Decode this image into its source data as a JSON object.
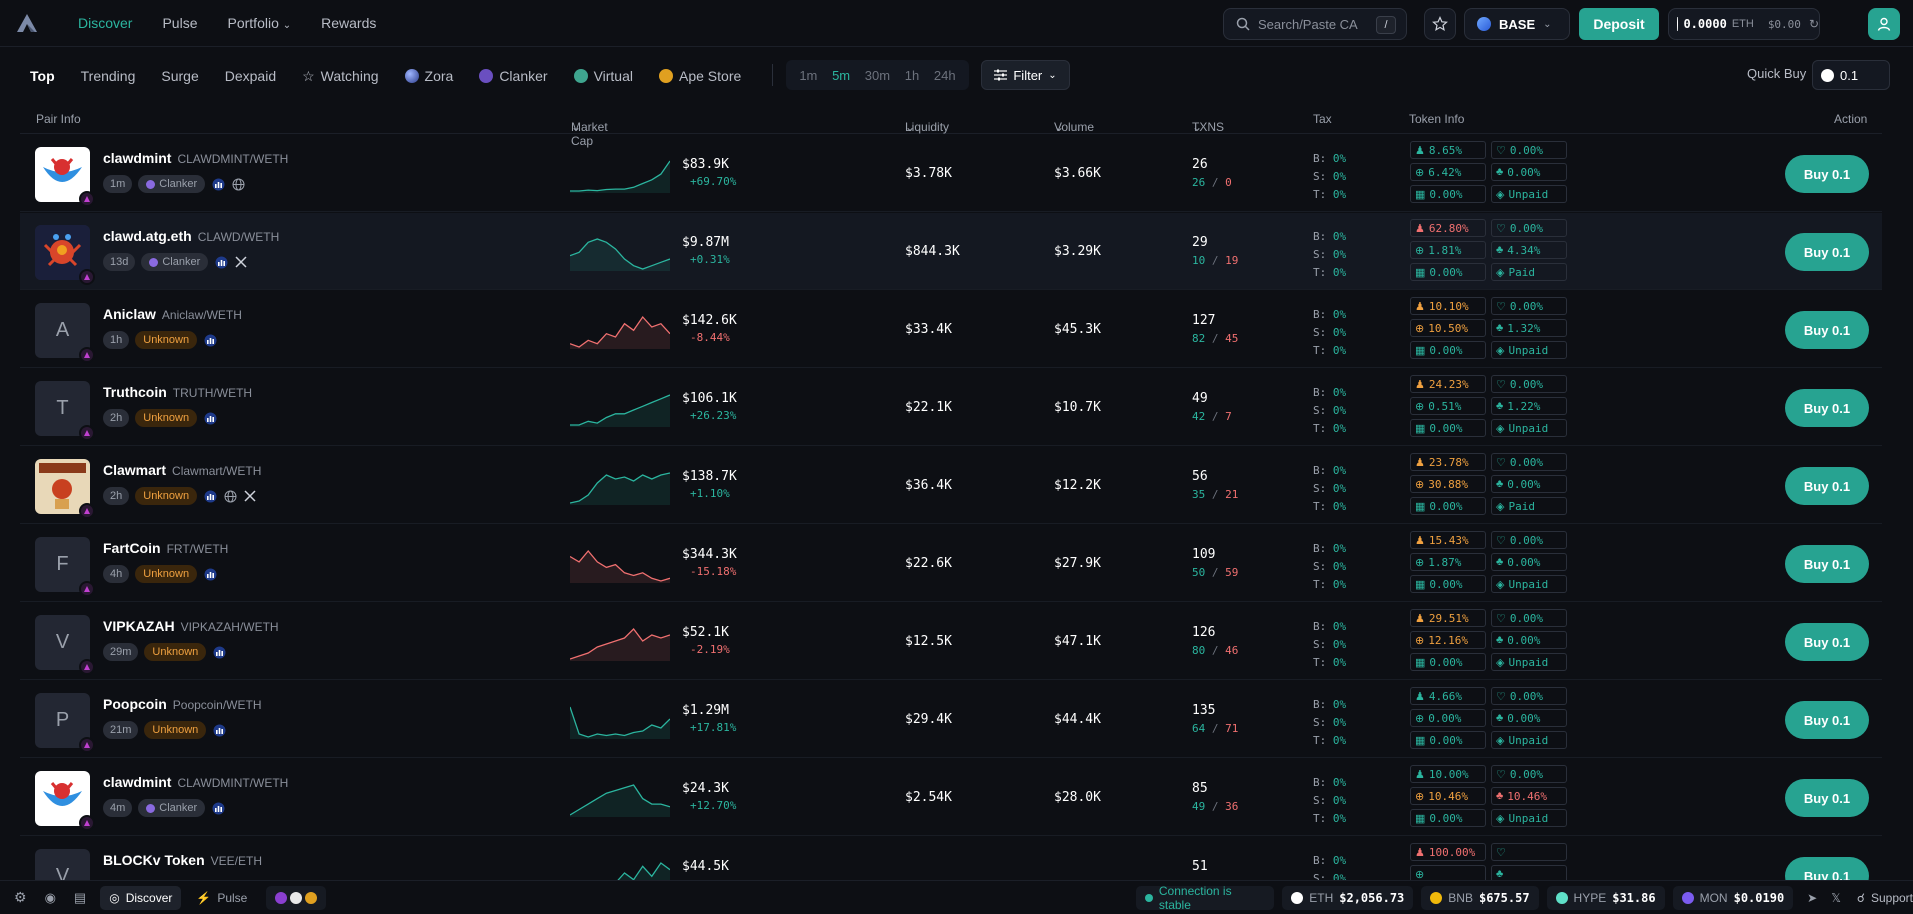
{
  "nav": {
    "items": [
      "Discover",
      "Pulse",
      "Portfolio",
      "Rewards"
    ],
    "active": 0
  },
  "search": {
    "placeholder": "Search/Paste CA",
    "shortcut": "/"
  },
  "network": {
    "label": "BASE"
  },
  "deposit": {
    "label": "Deposit"
  },
  "wallet": {
    "balance": "0.0000",
    "unit": "ETH",
    "usd": "$0.00"
  },
  "tabs": {
    "items": [
      "Top",
      "Trending",
      "Surge",
      "Dexpaid",
      "Watching",
      "Zora",
      "Clanker",
      "Virtual",
      "Ape Store"
    ],
    "active": 0
  },
  "time": {
    "items": [
      "1m",
      "5m",
      "30m",
      "1h",
      "24h"
    ],
    "active": 1
  },
  "filter": {
    "label": "Filter"
  },
  "quickbuy": {
    "label": "Quick Buy",
    "value": "0.1"
  },
  "table": {
    "headers": {
      "pair": "Pair Info",
      "mcap": "Market Cap",
      "liq": "Liquidity",
      "vol": "Volume",
      "txns": "TXNS",
      "tax": "Tax",
      "info": "Token Info",
      "action": "Action"
    }
  },
  "tax_labels": {
    "b": "B:",
    "s": "S:",
    "t": "T:"
  },
  "rows": [
    {
      "name": "clawdmint",
      "pair": "CLAWDMINT/WETH",
      "age": "1m",
      "launch": "Clanker",
      "letter": "",
      "img": "clawd",
      "mcap": "$83.9K",
      "chg": "+69.70%",
      "dir": "pos",
      "liq": "$3.78K",
      "vol": "$3.66K",
      "txns": "26",
      "buys": "26",
      "sells": "0",
      "tax": [
        "0%",
        "0%",
        "0%"
      ],
      "info": [
        [
          "8.65%",
          "g"
        ],
        [
          "0.00%",
          "g"
        ],
        [
          "6.42%",
          "g"
        ],
        [
          "0.00%",
          "g"
        ],
        [
          "0.00%",
          "g"
        ],
        [
          "Unpaid",
          "g"
        ]
      ],
      "socials": [
        "chart",
        "globe"
      ],
      "spark": [
        2,
        2,
        2.5,
        2.2,
        2.8,
        3,
        3,
        4,
        6,
        8,
        11,
        18
      ],
      "highlight": false
    },
    {
      "name": "clawd.atg.eth",
      "pair": "CLAWD/WETH",
      "age": "13d",
      "launch": "Clanker",
      "letter": "",
      "img": "robot",
      "mcap": "$9.87M",
      "chg": "+0.31%",
      "dir": "pos",
      "liq": "$844.3K",
      "vol": "$3.29K",
      "txns": "29",
      "buys": "10",
      "sells": "19",
      "tax": [
        "0%",
        "0%",
        "0%"
      ],
      "info": [
        [
          "62.80%",
          "r"
        ],
        [
          "0.00%",
          "g"
        ],
        [
          "1.81%",
          "g"
        ],
        [
          "4.34%",
          "g"
        ],
        [
          "0.00%",
          "g"
        ],
        [
          "Paid",
          "g"
        ]
      ],
      "socials": [
        "chart",
        "x"
      ],
      "spark": [
        8,
        9,
        12,
        13,
        12,
        10,
        7,
        5,
        4,
        5,
        6,
        7
      ],
      "highlight": true
    },
    {
      "name": "Aniclaw",
      "pair": "Aniclaw/WETH",
      "age": "1h",
      "launch": "Unknown",
      "letter": "A",
      "img": "",
      "mcap": "$142.6K",
      "chg": "-8.44%",
      "dir": "neg",
      "liq": "$33.4K",
      "vol": "$45.3K",
      "txns": "127",
      "buys": "82",
      "sells": "45",
      "tax": [
        "0%",
        "0%",
        "0%"
      ],
      "info": [
        [
          "10.10%",
          "o"
        ],
        [
          "0.00%",
          "g"
        ],
        [
          "10.50%",
          "o"
        ],
        [
          "1.32%",
          "g"
        ],
        [
          "0.00%",
          "g"
        ],
        [
          "Unpaid",
          "g"
        ]
      ],
      "socials": [
        "chart"
      ],
      "spark": [
        6,
        5,
        7,
        6,
        9,
        8,
        12,
        10,
        14,
        11,
        12,
        9
      ],
      "highlight": false
    },
    {
      "name": "Truthcoin",
      "pair": "TRUTH/WETH",
      "age": "2h",
      "launch": "Unknown",
      "letter": "T",
      "img": "",
      "mcap": "$106.1K",
      "chg": "+26.23%",
      "dir": "pos",
      "liq": "$22.1K",
      "vol": "$10.7K",
      "txns": "49",
      "buys": "42",
      "sells": "7",
      "tax": [
        "0%",
        "0%",
        "0%"
      ],
      "info": [
        [
          "24.23%",
          "o"
        ],
        [
          "0.00%",
          "g"
        ],
        [
          "0.51%",
          "g"
        ],
        [
          "1.22%",
          "g"
        ],
        [
          "0.00%",
          "g"
        ],
        [
          "Unpaid",
          "g"
        ]
      ],
      "socials": [
        "chart"
      ],
      "spark": [
        3,
        3,
        4,
        3.5,
        5,
        6,
        6,
        7,
        8,
        9,
        10,
        11
      ],
      "highlight": false
    },
    {
      "name": "Clawmart",
      "pair": "Clawmart/WETH",
      "age": "2h",
      "launch": "Unknown",
      "letter": "",
      "img": "clawmart",
      "mcap": "$138.7K",
      "chg": "+1.10%",
      "dir": "pos",
      "liq": "$36.4K",
      "vol": "$12.2K",
      "txns": "56",
      "buys": "35",
      "sells": "21",
      "tax": [
        "0%",
        "0%",
        "0%"
      ],
      "info": [
        [
          "23.78%",
          "o"
        ],
        [
          "0.00%",
          "g"
        ],
        [
          "30.88%",
          "o"
        ],
        [
          "0.00%",
          "g"
        ],
        [
          "0.00%",
          "g"
        ],
        [
          "Paid",
          "g"
        ]
      ],
      "socials": [
        "chart",
        "globe",
        "x"
      ],
      "spark": [
        2,
        2.5,
        4,
        7,
        9,
        8,
        8.5,
        7.5,
        9,
        8,
        9,
        9.5
      ],
      "highlight": false
    },
    {
      "name": "FartCoin",
      "pair": "FRT/WETH",
      "age": "4h",
      "launch": "Unknown",
      "letter": "F",
      "img": "",
      "mcap": "$344.3K",
      "chg": "-15.18%",
      "dir": "neg",
      "liq": "$22.6K",
      "vol": "$27.9K",
      "txns": "109",
      "buys": "50",
      "sells": "59",
      "tax": [
        "0%",
        "0%",
        "0%"
      ],
      "info": [
        [
          "15.43%",
          "o"
        ],
        [
          "0.00%",
          "g"
        ],
        [
          "1.87%",
          "g"
        ],
        [
          "0.00%",
          "g"
        ],
        [
          "0.00%",
          "g"
        ],
        [
          "Unpaid",
          "g"
        ]
      ],
      "socials": [
        "chart"
      ],
      "spark": [
        10,
        9,
        11,
        9,
        8,
        8.5,
        7,
        6.5,
        7,
        6,
        5.5,
        6
      ],
      "highlight": false
    },
    {
      "name": "VIPKAZAH",
      "pair": "VIPKAZAH/WETH",
      "age": "29m",
      "launch": "Unknown",
      "letter": "V",
      "img": "",
      "mcap": "$52.1K",
      "chg": "-2.19%",
      "dir": "neg",
      "liq": "$12.5K",
      "vol": "$47.1K",
      "txns": "126",
      "buys": "80",
      "sells": "46",
      "tax": [
        "0%",
        "0%",
        "0%"
      ],
      "info": [
        [
          "29.51%",
          "o"
        ],
        [
          "0.00%",
          "g"
        ],
        [
          "12.16%",
          "o"
        ],
        [
          "0.00%",
          "g"
        ],
        [
          "0.00%",
          "g"
        ],
        [
          "Unpaid",
          "g"
        ]
      ],
      "socials": [
        "chart"
      ],
      "spark": [
        2,
        3,
        4,
        6,
        7,
        8,
        9,
        12,
        8,
        10,
        9,
        10
      ],
      "highlight": false
    },
    {
      "name": "Poopcoin",
      "pair": "Poopcoin/WETH",
      "age": "21m",
      "launch": "Unknown",
      "letter": "P",
      "img": "",
      "mcap": "$1.29M",
      "chg": "+17.81%",
      "dir": "pos",
      "liq": "$29.4K",
      "vol": "$44.4K",
      "txns": "135",
      "buys": "64",
      "sells": "71",
      "tax": [
        "0%",
        "0%",
        "0%"
      ],
      "info": [
        [
          "4.66%",
          "g"
        ],
        [
          "0.00%",
          "g"
        ],
        [
          "0.00%",
          "g"
        ],
        [
          "0.00%",
          "g"
        ],
        [
          "0.00%",
          "g"
        ],
        [
          "Unpaid",
          "g"
        ]
      ],
      "socials": [
        "chart"
      ],
      "spark": [
        14,
        5,
        4,
        5,
        4.5,
        5,
        4.5,
        5.5,
        6,
        8,
        7,
        10
      ],
      "highlight": false
    },
    {
      "name": "clawdmint",
      "pair": "CLAWDMINT/WETH",
      "age": "4m",
      "launch": "Clanker",
      "letter": "",
      "img": "clawd",
      "mcap": "$24.3K",
      "chg": "+12.70%",
      "dir": "pos",
      "liq": "$2.54K",
      "vol": "$28.0K",
      "txns": "85",
      "buys": "49",
      "sells": "36",
      "tax": [
        "0%",
        "0%",
        "0%"
      ],
      "info": [
        [
          "10.00%",
          "g"
        ],
        [
          "0.00%",
          "g"
        ],
        [
          "10.46%",
          "o"
        ],
        [
          "10.46%",
          "r"
        ],
        [
          "0.00%",
          "g"
        ],
        [
          "Unpaid",
          "g"
        ]
      ],
      "socials": [
        "chart"
      ],
      "spark": [
        2,
        4,
        6,
        8,
        10,
        11,
        12,
        13,
        8,
        6,
        6,
        5
      ],
      "highlight": false
    },
    {
      "name": "BLOCKv Token",
      "pair": "VEE/ETH",
      "age": "",
      "launch": "",
      "letter": "V",
      "img": "",
      "mcap": "$44.5K",
      "chg": "",
      "dir": "pos",
      "liq": "",
      "vol": "",
      "txns": "51",
      "buys": "",
      "sells": "",
      "tax": [
        "0%",
        "0%",
        "0%"
      ],
      "info": [
        [
          "100.00%",
          "r"
        ],
        [
          "",
          "g"
        ],
        [
          "",
          "g"
        ],
        [
          "",
          "g"
        ],
        [
          "",
          "g"
        ],
        [
          "",
          "g"
        ]
      ],
      "socials": [],
      "spark": [
        0,
        0,
        0,
        0,
        0,
        3,
        6,
        4,
        8,
        5,
        9,
        7
      ],
      "highlight": false
    }
  ],
  "footer": {
    "discover": "Discover",
    "pulse": "Pulse",
    "status": "Connection is stable",
    "prices": [
      {
        "sym": "ETH",
        "val": "$2,056.73"
      },
      {
        "sym": "BNB",
        "val": "$675.57"
      },
      {
        "sym": "HYPE",
        "val": "$31.86"
      },
      {
        "sym": "MON",
        "val": "$0.0190"
      }
    ],
    "support": "Support"
  },
  "colors": {
    "accent": "#27a391",
    "pos": "#2bb59f",
    "neg": "#f07070",
    "warn": "#f0a140",
    "bg": "#0d0f14"
  }
}
